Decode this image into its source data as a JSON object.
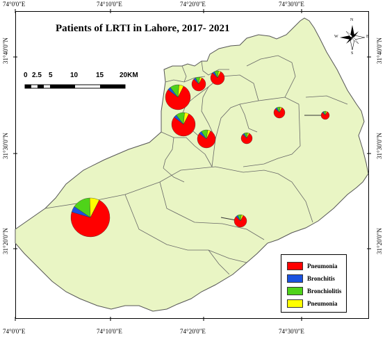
{
  "title": "Patients of LRTI in Lahore, 2017- 2021",
  "colors": {
    "land": "#e9f5c4",
    "boundary": "#555555",
    "pneumonia": "#ff0000",
    "bronchitis": "#1a52e0",
    "bronchiolitis": "#4fd319",
    "pneumonia2": "#ffff00"
  },
  "axes": {
    "top_labels": [
      "74°0'0\"E",
      "74°10'0\"E",
      "74°20'0\"E",
      "74°30'0\"E"
    ],
    "bottom_labels": [
      "74°0'0\"E",
      "74°10'0\"E",
      "74°20'0\"E",
      "74°30'0\"E"
    ],
    "left_labels": [
      "31°40'0\"N",
      "31°30'0\"N",
      "31°20'0\"N"
    ],
    "right_labels": [
      "31°40'0\"N",
      "31°30'0\"N",
      "31°20'0\"N"
    ]
  },
  "scale_bar": {
    "ticks": [
      "0",
      "2.5",
      "5",
      "10",
      "15",
      "20KM"
    ]
  },
  "north_arrow": {
    "n": "N",
    "s": "S",
    "e": "E",
    "w": "W"
  },
  "legend": [
    {
      "label": "Pneumonia",
      "color": "#ff0000"
    },
    {
      "label": "Bronchitis",
      "color": "#1a52e0"
    },
    {
      "label": "Bronchiolitis",
      "color": "#4fd319"
    },
    {
      "label": "Pneumonia",
      "color": "#ffff00"
    }
  ],
  "pies": [
    {
      "name": "pie-northern-1",
      "shares": [
        0.8,
        0.05,
        0.1,
        0.05
      ]
    },
    {
      "name": "pie-northern-2",
      "shares": [
        0.8,
        0.05,
        0.1,
        0.05
      ]
    },
    {
      "name": "pie-central-large",
      "shares": [
        0.78,
        0.04,
        0.12,
        0.06
      ]
    },
    {
      "name": "pie-central-medium",
      "shares": [
        0.78,
        0.04,
        0.12,
        0.06
      ]
    },
    {
      "name": "pie-central-small",
      "shares": [
        0.78,
        0.05,
        0.12,
        0.05
      ]
    },
    {
      "name": "pie-east-1",
      "shares": [
        0.8,
        0.05,
        0.1,
        0.05
      ]
    },
    {
      "name": "pie-east-2",
      "shares": [
        0.8,
        0.05,
        0.1,
        0.05
      ]
    },
    {
      "name": "pie-east-3",
      "shares": [
        0.8,
        0.05,
        0.1,
        0.05
      ]
    },
    {
      "name": "pie-southeast",
      "shares": [
        0.8,
        0.05,
        0.1,
        0.05
      ]
    },
    {
      "name": "pie-southwest-large",
      "shares": [
        0.72,
        0.05,
        0.15,
        0.08
      ]
    }
  ]
}
